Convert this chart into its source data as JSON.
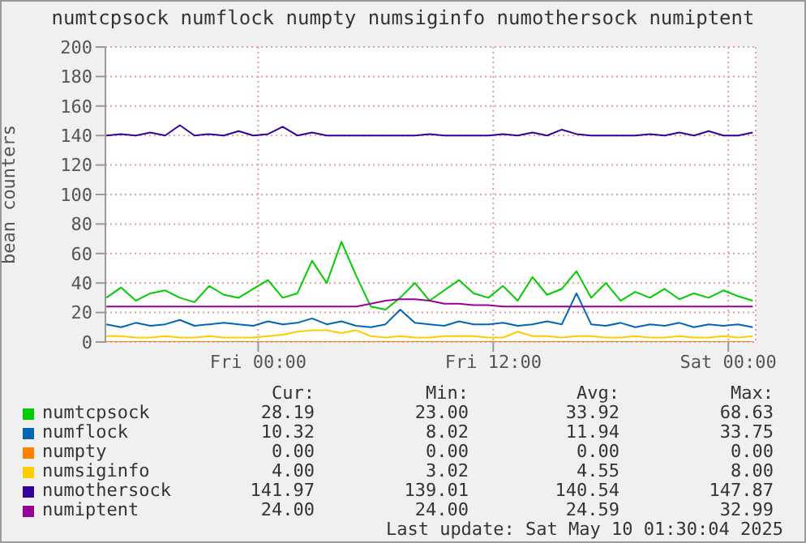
{
  "chart_data": {
    "type": "line",
    "title": "numtcpsock numflock numpty numsiginfo numothersock numiptent",
    "ylabel": "bean counters",
    "grid": true,
    "legend": "bottom",
    "marker": "none",
    "line_style": "solid",
    "xlim": [
      "2025-05-08T16:12",
      "2025-05-10T01:24"
    ],
    "xticks": [
      {
        "value": "2025-05-09T00:00",
        "label": "Fri 00:00"
      },
      {
        "value": "2025-05-09T12:00",
        "label": "Fri 12:00"
      },
      {
        "value": "2025-05-10T00:00",
        "label": "Sat 00:00"
      }
    ],
    "ylim": [
      0,
      200
    ],
    "yticks": [
      0,
      20,
      40,
      60,
      80,
      100,
      120,
      140,
      160,
      180,
      200
    ],
    "x": [
      "2025-05-08T16:15",
      "2025-05-08T17:00",
      "2025-05-08T17:45",
      "2025-05-08T18:30",
      "2025-05-08T19:15",
      "2025-05-08T20:00",
      "2025-05-08T20:45",
      "2025-05-08T21:30",
      "2025-05-08T22:15",
      "2025-05-08T23:00",
      "2025-05-08T23:45",
      "2025-05-09T00:30",
      "2025-05-09T01:15",
      "2025-05-09T02:00",
      "2025-05-09T02:45",
      "2025-05-09T03:30",
      "2025-05-09T04:15",
      "2025-05-09T05:00",
      "2025-05-09T05:45",
      "2025-05-09T06:30",
      "2025-05-09T07:15",
      "2025-05-09T08:00",
      "2025-05-09T08:45",
      "2025-05-09T09:30",
      "2025-05-09T10:15",
      "2025-05-09T11:00",
      "2025-05-09T11:45",
      "2025-05-09T12:30",
      "2025-05-09T13:15",
      "2025-05-09T14:00",
      "2025-05-09T14:45",
      "2025-05-09T15:30",
      "2025-05-09T16:15",
      "2025-05-09T17:00",
      "2025-05-09T17:45",
      "2025-05-09T18:30",
      "2025-05-09T19:15",
      "2025-05-09T20:00",
      "2025-05-09T20:45",
      "2025-05-09T21:30",
      "2025-05-09T22:15",
      "2025-05-09T23:00",
      "2025-05-09T23:45",
      "2025-05-10T00:30",
      "2025-05-10T01:15"
    ],
    "series": [
      {
        "name": "numtcpsock",
        "color": "#00cc00",
        "values": [
          30,
          37,
          28,
          33,
          35,
          30,
          27,
          38,
          32,
          30,
          36,
          42,
          30,
          33,
          55,
          40,
          68,
          45,
          24,
          22,
          30,
          40,
          28,
          35,
          42,
          33,
          30,
          38,
          28,
          44,
          32,
          36,
          48,
          30,
          40,
          28,
          34,
          30,
          36,
          29,
          33,
          30,
          35,
          31,
          28
        ]
      },
      {
        "name": "numflock",
        "color": "#0066b3",
        "values": [
          12,
          10,
          13,
          11,
          12,
          15,
          11,
          12,
          13,
          12,
          11,
          14,
          12,
          13,
          16,
          12,
          14,
          11,
          10,
          12,
          22,
          13,
          12,
          11,
          14,
          12,
          12,
          13,
          11,
          12,
          14,
          12,
          33,
          12,
          11,
          13,
          10,
          12,
          11,
          13,
          10,
          12,
          11,
          12,
          10
        ]
      },
      {
        "name": "numpty",
        "color": "#ff8000",
        "values": [
          0,
          0,
          0,
          0,
          0,
          0,
          0,
          0,
          0,
          0,
          0,
          0,
          0,
          0,
          0,
          0,
          0,
          0,
          0,
          0,
          0,
          0,
          0,
          0,
          0,
          0,
          0,
          0,
          0,
          0,
          0,
          0,
          0,
          0,
          0,
          0,
          0,
          0,
          0,
          0,
          0,
          0,
          0,
          0,
          0
        ]
      },
      {
        "name": "numsiginfo",
        "color": "#ffcc00",
        "values": [
          4,
          4,
          3,
          3,
          4,
          3,
          3,
          4,
          3,
          3,
          3,
          4,
          5,
          7,
          8,
          8,
          6,
          8,
          4,
          3,
          4,
          3,
          3,
          4,
          4,
          4,
          3,
          3,
          7,
          4,
          4,
          3,
          4,
          4,
          3,
          3,
          4,
          3,
          3,
          4,
          3,
          3,
          4,
          3,
          4
        ]
      },
      {
        "name": "numothersock",
        "color": "#330099",
        "values": [
          140,
          141,
          140,
          142,
          140,
          147,
          140,
          141,
          140,
          143,
          140,
          141,
          146,
          140,
          142,
          140,
          140,
          140,
          140,
          140,
          140,
          140,
          141,
          140,
          140,
          140,
          140,
          141,
          140,
          142,
          140,
          144,
          141,
          140,
          140,
          140,
          140,
          141,
          140,
          142,
          140,
          143,
          140,
          140,
          142
        ]
      },
      {
        "name": "numiptent",
        "color": "#990099",
        "values": [
          24,
          24,
          24,
          24,
          24,
          24,
          24,
          24,
          24,
          24,
          24,
          24,
          24,
          24,
          24,
          24,
          24,
          24,
          26,
          28,
          29,
          29,
          28,
          26,
          26,
          25,
          25,
          24,
          24,
          24,
          24,
          24,
          24,
          24,
          24,
          24,
          24,
          24,
          24,
          24,
          24,
          24,
          24,
          24,
          24
        ]
      }
    ],
    "annotations": [
      "Cur:",
      "Min:",
      "Avg:",
      "Max:",
      "28.19",
      "23.00",
      "33.92",
      "68.63",
      "10.32",
      "8.02",
      "11.94",
      "33.75",
      "0.00",
      "0.00",
      "0.00",
      "0.00",
      "4.00",
      "3.02",
      "4.55",
      "8.00",
      "141.97",
      "139.01",
      "140.54",
      "147.87",
      "24.00",
      "24.00",
      "24.59",
      "32.99",
      "Last update: Sat May 10 01:30:04 2025"
    ]
  }
}
